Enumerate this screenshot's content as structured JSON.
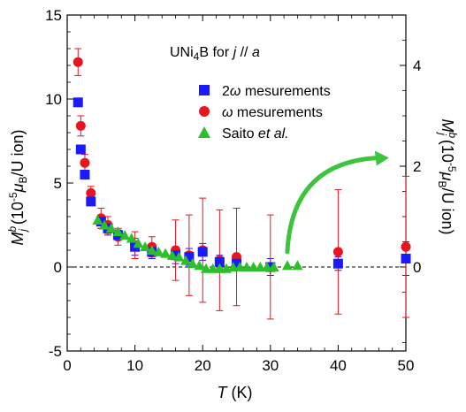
{
  "chart_data": {
    "type": "scatter",
    "title": "",
    "xlabel": {
      "symbol": "T",
      "unit": " (K)"
    },
    "ylabel_left": {
      "main": "M",
      "sup": "b",
      "sub": "j",
      "text_before_sup": " (10",
      "exp": "-5",
      "mu": "μ",
      "mu_sub": "B",
      "tail": "/U ion)"
    },
    "ylabel_right": {
      "main": "M",
      "sup": "b",
      "sub": "j",
      "text_before_sup": " (10",
      "exp": "-5",
      "mu": "μ",
      "mu_sub": "B",
      "tail": "/U ion)"
    },
    "xlim": [
      0,
      50
    ],
    "ylim_left": [
      -5,
      15
    ],
    "ylim_right": [
      -1.667,
      5
    ],
    "x_ticks": [
      0,
      10,
      20,
      30,
      40,
      50
    ],
    "x_tick_labels": [
      "0",
      "10",
      "20",
      "30",
      "40",
      "50"
    ],
    "y_ticks_left": [
      -5,
      0,
      5,
      10,
      15
    ],
    "y_tick_labels_left": [
      "-5",
      "0",
      "5",
      "10",
      "15"
    ],
    "y_ticks_right": [
      0,
      2,
      4
    ],
    "y_tick_labels_right": [
      "0",
      "2",
      "4"
    ],
    "grid": false,
    "legend_title": {
      "pre": "UNi",
      "sub": "4",
      "post": "B for ",
      "italic": "j",
      "mid": " // ",
      "italic2": "a"
    },
    "legend_position": "top-right",
    "zero_line": {
      "y": 0,
      "style": "dashed"
    },
    "series": [
      {
        "name": "2ω mesurements",
        "label_parts": {
          "pre": "2",
          "italic": "ω",
          "post": " mesurements"
        },
        "marker": "square",
        "color": "#1a1aff",
        "axis": "left",
        "points": [
          {
            "x": 1.6,
            "y": 9.8,
            "err": 0
          },
          {
            "x": 2.0,
            "y": 7.0,
            "err": 0
          },
          {
            "x": 2.6,
            "y": 5.5,
            "err": 0
          },
          {
            "x": 3.5,
            "y": 3.9,
            "err": 0
          },
          {
            "x": 5.0,
            "y": 2.7,
            "err": 0.4
          },
          {
            "x": 6.0,
            "y": 2.3,
            "err": 0.4
          },
          {
            "x": 7.5,
            "y": 1.9,
            "err": 0.3
          },
          {
            "x": 10.0,
            "y": 1.2,
            "err": 0.5
          },
          {
            "x": 12.5,
            "y": 0.9,
            "err": 0.4
          },
          {
            "x": 16.0,
            "y": 0.7,
            "err": 0.5
          },
          {
            "x": 18.0,
            "y": 0.6,
            "err": 0.5
          },
          {
            "x": 20.0,
            "y": 0.9,
            "err": 0.5
          },
          {
            "x": 22.5,
            "y": 0.3,
            "err": 0.4
          },
          {
            "x": 25.0,
            "y": 0.2,
            "err": 0.4
          },
          {
            "x": 30.0,
            "y": 0.0,
            "err": 0.5
          },
          {
            "x": 40.0,
            "y": 0.2,
            "err": 0.4
          },
          {
            "x": 50.0,
            "y": 0.5,
            "err": 1.0
          }
        ]
      },
      {
        "name": "ω mesurements",
        "label_parts": {
          "pre": "",
          "italic": "ω",
          "post": " mesurements"
        },
        "marker": "circle",
        "color": "#e8141e",
        "axis": "left",
        "points": [
          {
            "x": 1.6,
            "y": 12.2,
            "err": 0.8
          },
          {
            "x": 2.0,
            "y": 8.4,
            "err": 0.6
          },
          {
            "x": 2.6,
            "y": 6.2,
            "err": 0.5
          },
          {
            "x": 3.5,
            "y": 4.4,
            "err": 0.4
          },
          {
            "x": 5.0,
            "y": 2.9,
            "err": 0.6
          },
          {
            "x": 6.0,
            "y": 2.5,
            "err": 0.5
          },
          {
            "x": 7.5,
            "y": 1.8,
            "err": 0.5
          },
          {
            "x": 10.0,
            "y": 1.3,
            "err": 0.8
          },
          {
            "x": 12.5,
            "y": 1.2,
            "err": 0.6
          },
          {
            "x": 16.0,
            "y": 1.0,
            "err": 1.8
          },
          {
            "x": 18.0,
            "y": 0.7,
            "err": 2.4
          },
          {
            "x": 20.0,
            "y": 1.0,
            "err": 3.1
          },
          {
            "x": 22.5,
            "y": 0.4,
            "err": 3.0
          },
          {
            "x": 25.0,
            "y": 0.6,
            "err": 2.9
          },
          {
            "x": 30.0,
            "y": 0.0,
            "err": 3.1
          },
          {
            "x": 40.0,
            "y": 0.9,
            "err": 3.7
          },
          {
            "x": 50.0,
            "y": 1.2,
            "err": 4.2
          }
        ]
      },
      {
        "name": "Saito et al.",
        "label_parts": {
          "pre": "Saito ",
          "italic": "et al.",
          "post": ""
        },
        "marker": "triangle",
        "color": "#2bbf2b",
        "axis": "right",
        "points": [
          {
            "x": 4.5,
            "y": 0.93
          },
          {
            "x": 5.5,
            "y": 0.83
          },
          {
            "x": 6.5,
            "y": 0.77
          },
          {
            "x": 7.5,
            "y": 0.7
          },
          {
            "x": 8.5,
            "y": 0.63
          },
          {
            "x": 9.5,
            "y": 0.57
          },
          {
            "x": 10.5,
            "y": 0.47
          },
          {
            "x": 11.5,
            "y": 0.4
          },
          {
            "x": 12.5,
            "y": 0.33
          },
          {
            "x": 13.5,
            "y": 0.3
          },
          {
            "x": 14.5,
            "y": 0.27
          },
          {
            "x": 15.5,
            "y": 0.23
          },
          {
            "x": 16.5,
            "y": 0.2
          },
          {
            "x": 17.5,
            "y": 0.13
          },
          {
            "x": 18.5,
            "y": 0.07
          },
          {
            "x": 19.5,
            "y": 0.03
          },
          {
            "x": 20.5,
            "y": -0.03
          },
          {
            "x": 21.5,
            "y": -0.03
          },
          {
            "x": 22.5,
            "y": -0.03
          },
          {
            "x": 23.5,
            "y": -0.03
          },
          {
            "x": 24.5,
            "y": 0.0
          },
          {
            "x": 25.5,
            "y": 0.0
          },
          {
            "x": 26.5,
            "y": 0.0
          },
          {
            "x": 27.5,
            "y": 0.0
          },
          {
            "x": 28.5,
            "y": 0.0
          },
          {
            "x": 29.5,
            "y": 0.0
          },
          {
            "x": 30.5,
            "y": 0.0
          },
          {
            "x": 32.5,
            "y": 0.03
          },
          {
            "x": 34.0,
            "y": 0.03
          }
        ]
      }
    ],
    "annotation_arrow": {
      "color": "#3cc43c",
      "from_x": 32.5,
      "from_y_left": 0.9,
      "to_x": 47.5,
      "to_y_left": 6.5
    }
  }
}
